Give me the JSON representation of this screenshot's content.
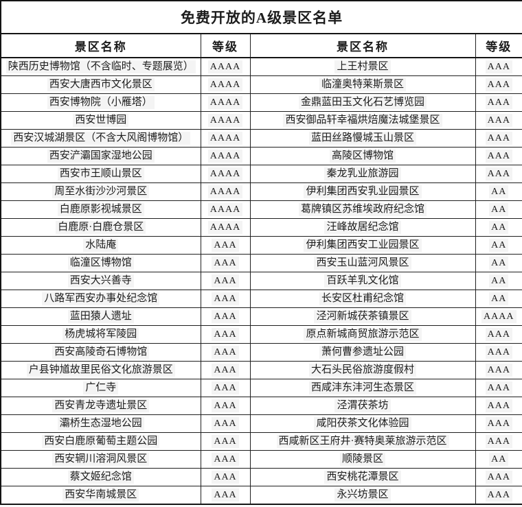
{
  "colors": {
    "border": "#141414",
    "text": "#1c1c1c",
    "background": "#ffffff"
  },
  "title": "免费开放的A级景区名单",
  "table": {
    "headers": {
      "name_left": "景区名称",
      "level_left": "等级",
      "name_right": "景区名称",
      "level_right": "等级"
    },
    "rows": [
      {
        "left_name": "陕西历史博物馆（不含临时、专题展览）",
        "left_level": "AAAA",
        "right_name": "上王村景区",
        "right_level": "AAA"
      },
      {
        "left_name": "西安大唐西市文化景区",
        "left_level": "AAAA",
        "right_name": "临潼奥特莱斯景区",
        "right_level": "AAA"
      },
      {
        "left_name": "西安博物院（小雁塔）",
        "left_level": "AAAA",
        "right_name": "金鼎蓝田玉文化石艺博览园",
        "right_level": "AAA"
      },
      {
        "left_name": "西安世博园",
        "left_level": "AAAA",
        "right_name": "西安御品轩幸福烘焙魔法城堡景区",
        "right_level": "AAA"
      },
      {
        "left_name": "西安汉城湖景区（不含大风阁博物馆）",
        "left_level": "AAAA",
        "right_name": "蓝田丝路慢城玉山景区",
        "right_level": "AAA"
      },
      {
        "left_name": "西安浐灞国家湿地公园",
        "left_level": "AAAA",
        "right_name": "高陵区博物馆",
        "right_level": "AAA"
      },
      {
        "left_name": "西安市王顺山景区",
        "left_level": "AAAA",
        "right_name": "秦龙乳业旅游园",
        "right_level": "AAA"
      },
      {
        "left_name": "周至水街沙沙河景区",
        "left_level": "AAAA",
        "right_name": "伊利集团西安乳业园景区",
        "right_level": "AA"
      },
      {
        "left_name": "白鹿原影视城景区",
        "left_level": "AAAA",
        "right_name": "葛牌镇区苏维埃政府纪念馆",
        "right_level": "AA"
      },
      {
        "left_name": "白鹿原·白鹿仓景区",
        "left_level": "AAAA",
        "right_name": "汪峰故居纪念馆",
        "right_level": "AA"
      },
      {
        "left_name": "水陆庵",
        "left_level": "AAA",
        "right_name": "伊利集团西安工业园景区",
        "right_level": "AA"
      },
      {
        "left_name": "临潼区博物馆",
        "left_level": "AAA",
        "right_name": "西安玉山蓝河风景区",
        "right_level": "AA"
      },
      {
        "left_name": "西安大兴善寺",
        "left_level": "AAA",
        "right_name": "百跃羊乳文化馆",
        "right_level": "AA"
      },
      {
        "left_name": "八路军西安办事处纪念馆",
        "left_level": "AAA",
        "right_name": "长安区杜甫纪念馆",
        "right_level": "AA"
      },
      {
        "left_name": "蓝田猿人遗址",
        "left_level": "AAA",
        "right_name": "泾河新城茯茶镇景区",
        "right_level": "AAAA"
      },
      {
        "left_name": "杨虎城将军陵园",
        "left_level": "AAA",
        "right_name": "原点新城商贸旅游示范区",
        "right_level": "AAA"
      },
      {
        "left_name": "西安高陵奇石博物馆",
        "left_level": "AAA",
        "right_name": "萧何曹参遗址公园",
        "right_level": "AAA"
      },
      {
        "left_name": "户县钟馗故里民俗文化旅游景区",
        "left_level": "AAA",
        "right_name": "大石头民俗旅游度假村",
        "right_level": "AAA"
      },
      {
        "left_name": "广仁寺",
        "left_level": "AAA",
        "right_name": "西咸沣东沣河生态景区",
        "right_level": "AAA"
      },
      {
        "left_name": "西安青龙寺遗址景区",
        "left_level": "AAA",
        "right_name": "泾渭茯茶坊",
        "right_level": "AAA"
      },
      {
        "left_name": "灞桥生态湿地公园",
        "left_level": "AAA",
        "right_name": "咸阳茯茶文化体验园",
        "right_level": "AAA"
      },
      {
        "left_name": "西安白鹿原葡萄主题公园",
        "left_level": "AAA",
        "right_name": "西咸新区王府井·赛特奥莱旅游示范区",
        "right_level": "AAA"
      },
      {
        "left_name": "西安辋川溶洞风景区",
        "left_level": "AAA",
        "right_name": "顺陵景区",
        "right_level": "AA"
      },
      {
        "left_name": "蔡文姬纪念馆",
        "left_level": "AAA",
        "right_name": "西安桃花潭景区",
        "right_level": "AAA"
      },
      {
        "left_name": "西安华南城景区",
        "left_level": "AAA",
        "right_name": "永兴坊景区",
        "right_level": "AAA"
      }
    ]
  }
}
